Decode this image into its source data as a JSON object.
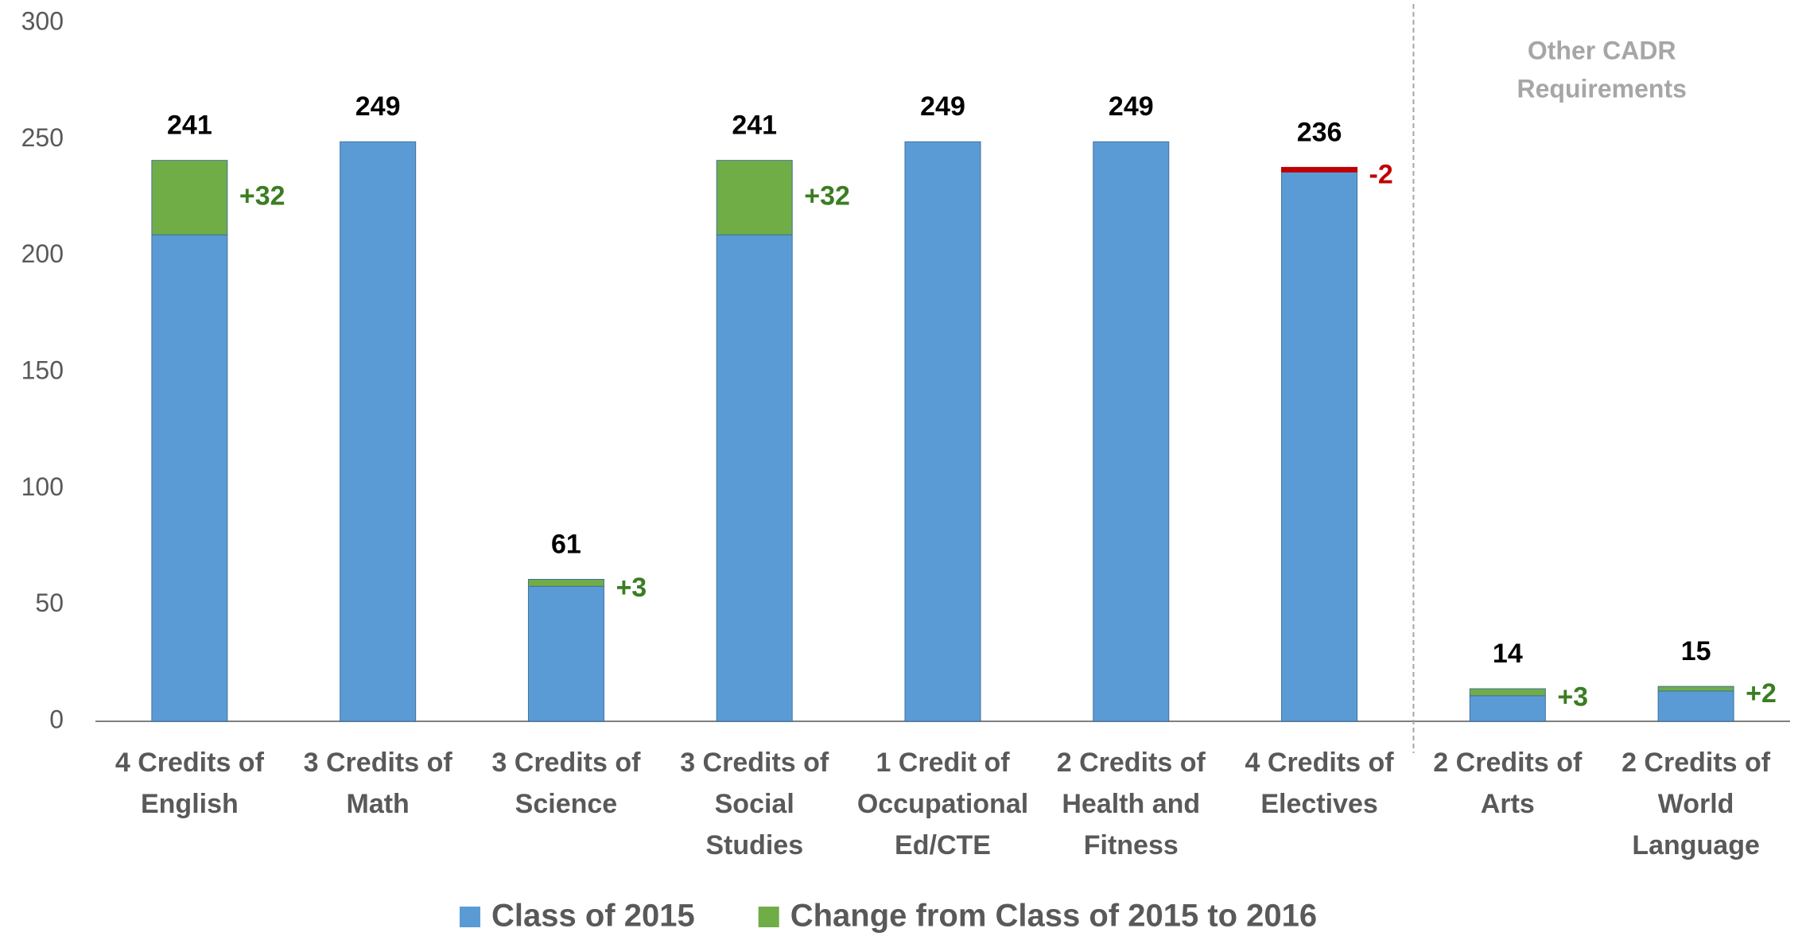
{
  "chart_data": {
    "type": "stacked_bar",
    "categories": [
      "4 Credits of\nEnglish",
      "3 Credits of\nMath",
      "3 Credits of\nScience",
      "3 Credits of\nSocial\nStudies",
      "1 Credit of\nOccupational\nEd/CTE",
      "2 Credits of\nHealth and\nFitness",
      "4 Credits of\nElectives",
      "2 Credits of\nArts",
      "2 Credits of\nWorld\nLanguage"
    ],
    "series": [
      {
        "name": "Class of 2015",
        "color": "#5b9bd5",
        "values": [
          209,
          249,
          58,
          209,
          249,
          249,
          238,
          11,
          13
        ]
      },
      {
        "name": "Change from Class of 2015 to 2016",
        "color": "#70ad47",
        "negative_color": "#c00000",
        "label_color": "#3a7d22",
        "values": [
          32,
          null,
          3,
          32,
          null,
          null,
          -2,
          3,
          2
        ],
        "value_labels": [
          "+32",
          null,
          "+3",
          "+32",
          null,
          null,
          "-2",
          "+3",
          "+2"
        ]
      }
    ],
    "totals": [
      241,
      249,
      61,
      241,
      249,
      249,
      236,
      14,
      15
    ],
    "annotation": [
      "Other CADR",
      "Requirements"
    ],
    "separator_after": 7,
    "ylim": [
      0,
      300
    ],
    "yticks": [
      0,
      50,
      100,
      150,
      200,
      250,
      300
    ],
    "grid": false,
    "legend": "bottom"
  }
}
